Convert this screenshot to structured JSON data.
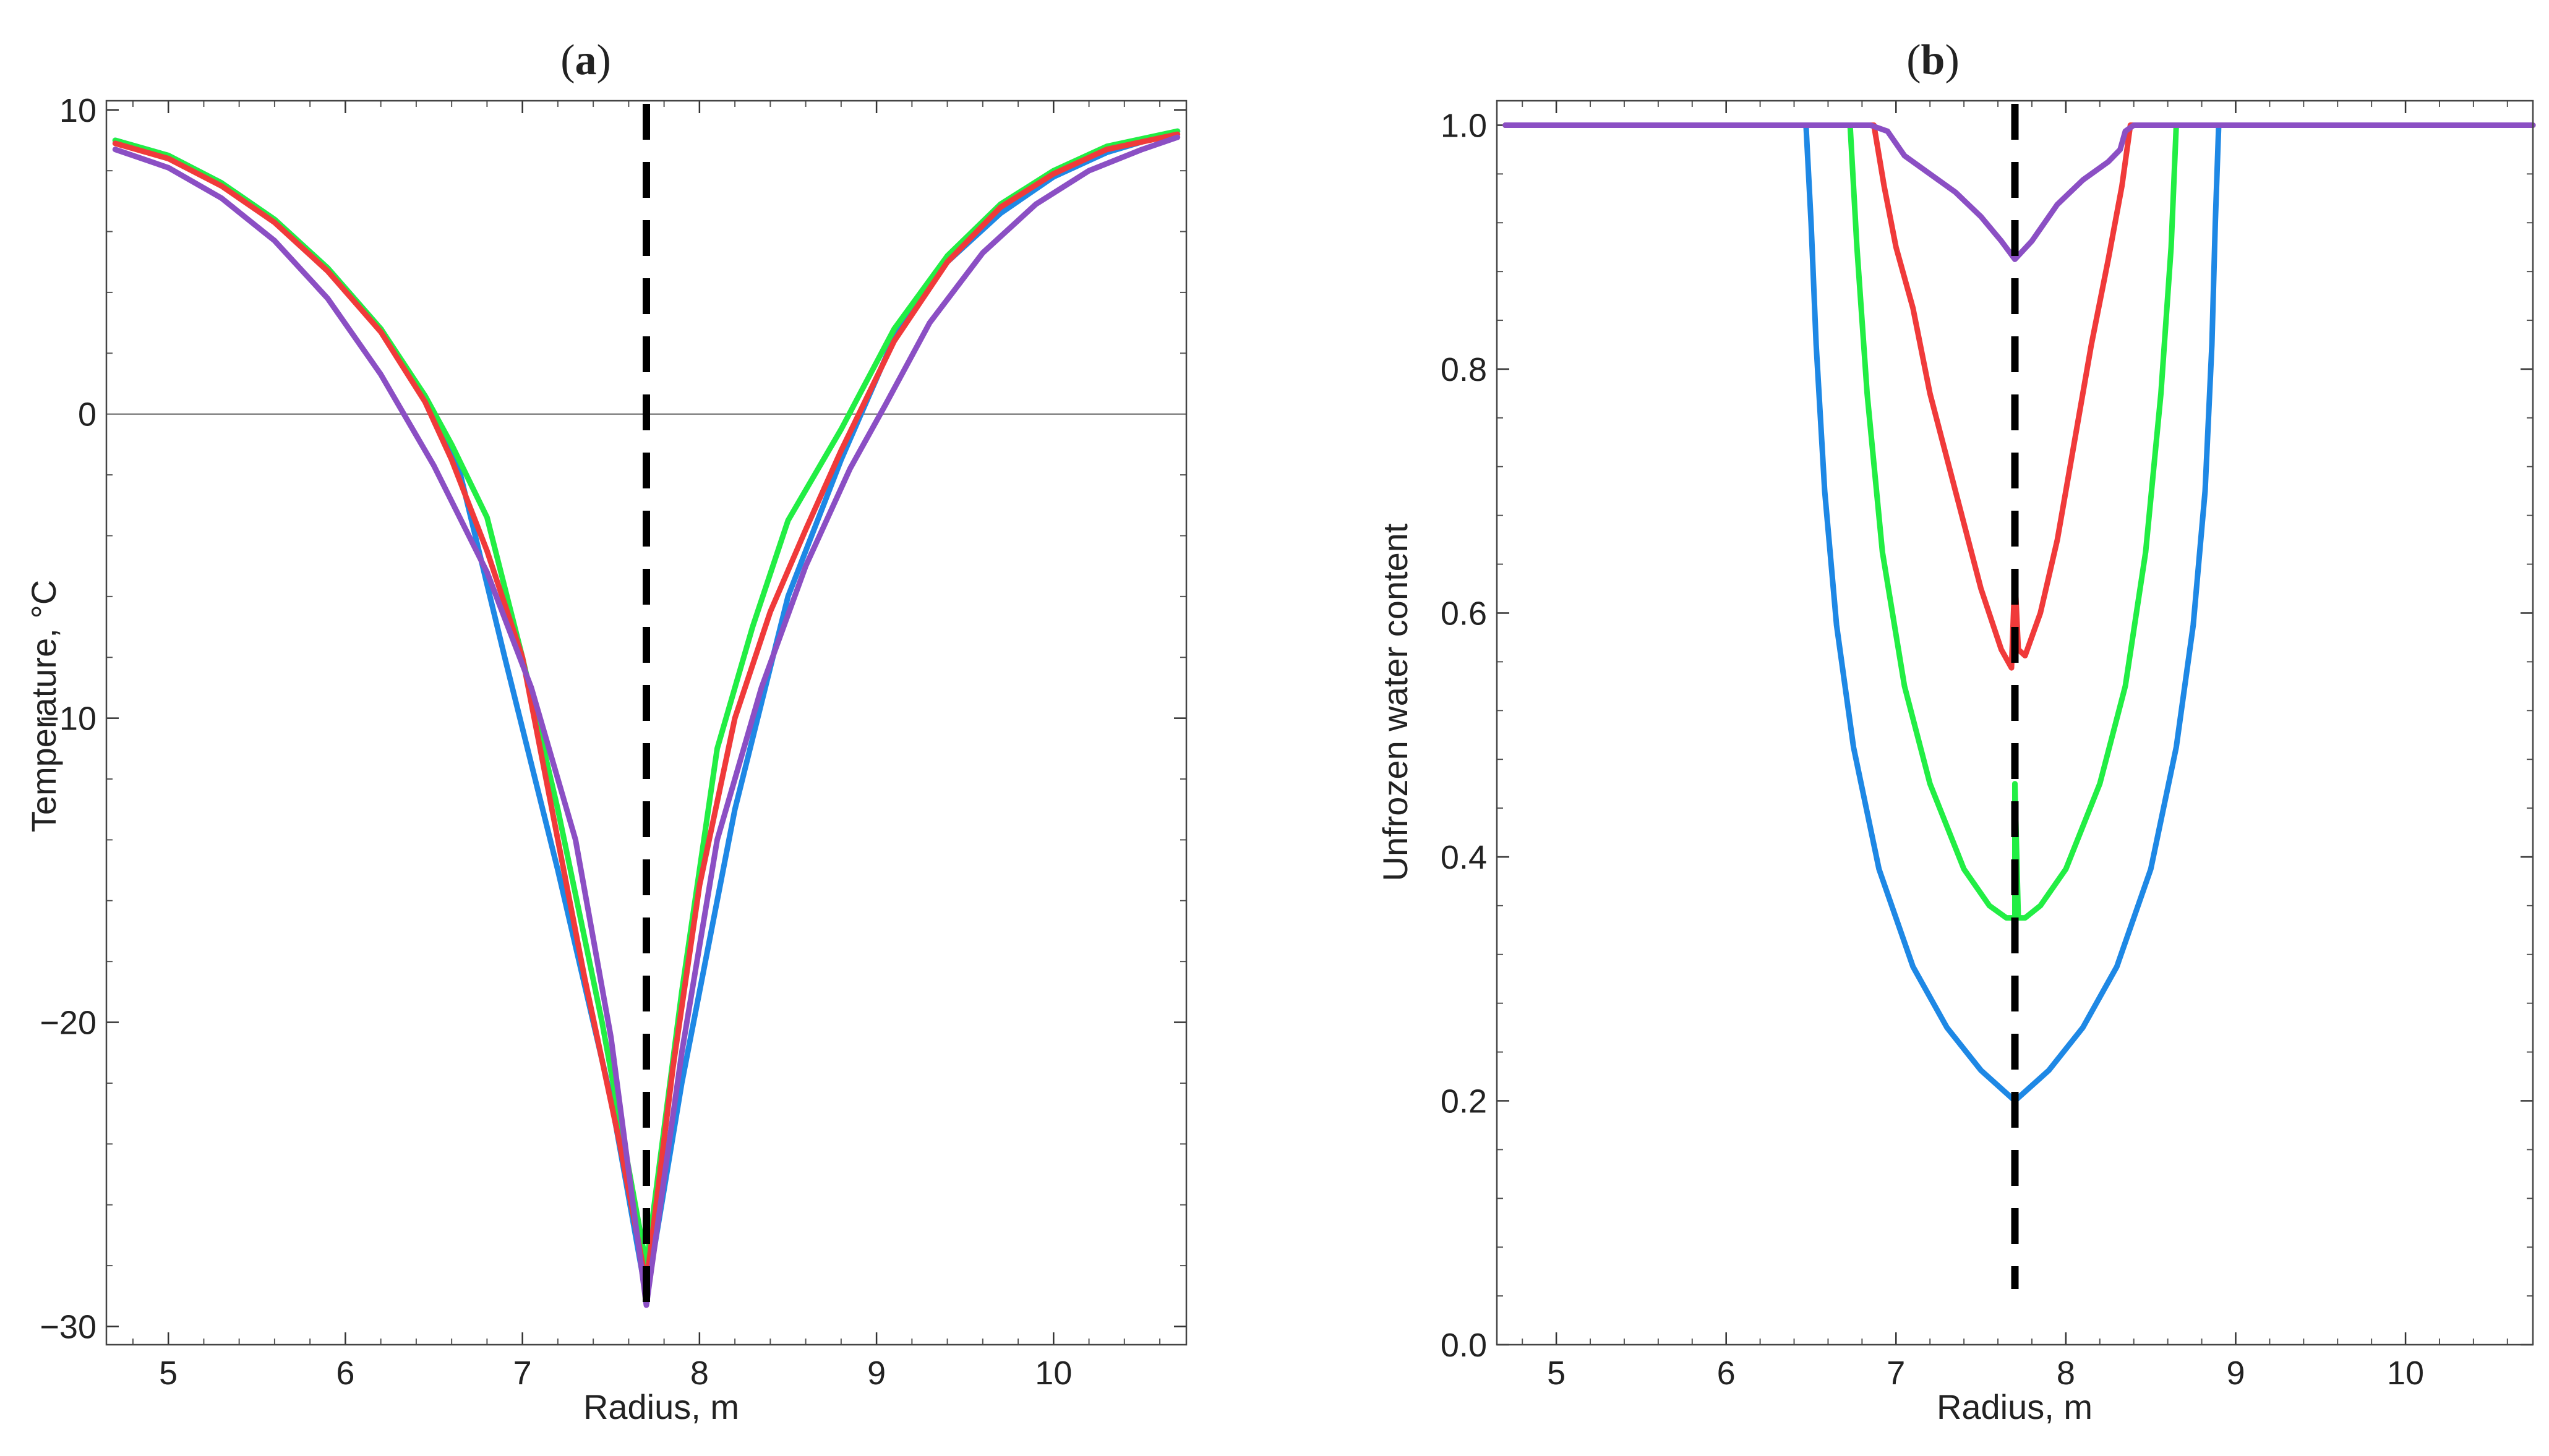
{
  "chart_data": [
    {
      "type": "line",
      "panel": "a",
      "title_prefix": "(",
      "title_letter": "a",
      "title_suffix": ")",
      "xlabel": "Radius, m",
      "ylabel": "Temperature, °C",
      "xlim": [
        4.65,
        10.75
      ],
      "ylim": [
        -30.6,
        10.3
      ],
      "xticks": [
        5,
        6,
        7,
        8,
        9,
        10
      ],
      "yticks": [
        -30,
        -20,
        -10,
        0,
        10
      ],
      "xtick_labels": [
        "5",
        "6",
        "7",
        "8",
        "9",
        "10"
      ],
      "ytick_labels": [
        "−30",
        "−20",
        "−10",
        "0",
        "10"
      ],
      "zero_line": 0,
      "vertical_marker_x": 7.7,
      "series": [
        {
          "name": "blue",
          "color": "#1e88e5",
          "points": [
            [
              4.7,
              9.0
            ],
            [
              5.0,
              8.5
            ],
            [
              5.3,
              7.6
            ],
            [
              5.6,
              6.4
            ],
            [
              5.9,
              4.8
            ],
            [
              6.2,
              2.8
            ],
            [
              6.45,
              0.5
            ],
            [
              6.65,
              -2.0
            ],
            [
              6.9,
              -8.0
            ],
            [
              7.2,
              -15.0
            ],
            [
              7.5,
              -22.5
            ],
            [
              7.7,
              -29.0
            ],
            [
              7.9,
              -22.0
            ],
            [
              8.2,
              -13.0
            ],
            [
              8.5,
              -6.0
            ],
            [
              8.8,
              -1.5
            ],
            [
              9.1,
              2.5
            ],
            [
              9.4,
              5.0
            ],
            [
              9.7,
              6.6
            ],
            [
              10.0,
              7.8
            ],
            [
              10.3,
              8.6
            ],
            [
              10.7,
              9.3
            ]
          ]
        },
        {
          "name": "green",
          "color": "#22ee44",
          "points": [
            [
              4.7,
              9.0
            ],
            [
              5.0,
              8.5
            ],
            [
              5.3,
              7.6
            ],
            [
              5.6,
              6.4
            ],
            [
              5.9,
              4.8
            ],
            [
              6.2,
              2.8
            ],
            [
              6.45,
              0.6
            ],
            [
              6.6,
              -1.0
            ],
            [
              6.8,
              -3.4
            ],
            [
              7.0,
              -8.0
            ],
            [
              7.2,
              -13.0
            ],
            [
              7.45,
              -20.0
            ],
            [
              7.7,
              -28.0
            ],
            [
              7.9,
              -19.0
            ],
            [
              8.1,
              -11.0
            ],
            [
              8.3,
              -7.0
            ],
            [
              8.5,
              -3.5
            ],
            [
              8.8,
              -0.5
            ],
            [
              9.1,
              2.8
            ],
            [
              9.4,
              5.2
            ],
            [
              9.7,
              6.9
            ],
            [
              10.0,
              8.0
            ],
            [
              10.3,
              8.8
            ],
            [
              10.7,
              9.3
            ]
          ]
        },
        {
          "name": "red",
          "color": "#f03a3a",
          "points": [
            [
              4.7,
              8.9
            ],
            [
              5.0,
              8.4
            ],
            [
              5.3,
              7.5
            ],
            [
              5.6,
              6.3
            ],
            [
              5.9,
              4.7
            ],
            [
              6.2,
              2.7
            ],
            [
              6.45,
              0.4
            ],
            [
              6.6,
              -1.5
            ],
            [
              6.8,
              -4.5
            ],
            [
              7.0,
              -8.0
            ],
            [
              7.15,
              -12.5
            ],
            [
              7.35,
              -18.5
            ],
            [
              7.55,
              -24.0
            ],
            [
              7.7,
              -28.6
            ],
            [
              7.85,
              -21.5
            ],
            [
              8.0,
              -15.5
            ],
            [
              8.2,
              -10.0
            ],
            [
              8.4,
              -6.5
            ],
            [
              8.6,
              -3.8
            ],
            [
              8.8,
              -1.2
            ],
            [
              9.1,
              2.4
            ],
            [
              9.4,
              5.0
            ],
            [
              9.7,
              6.8
            ],
            [
              10.0,
              7.9
            ],
            [
              10.3,
              8.7
            ],
            [
              10.7,
              9.2
            ]
          ]
        },
        {
          "name": "purple",
          "color": "#8b4fc4",
          "points": [
            [
              4.7,
              8.7
            ],
            [
              5.0,
              8.1
            ],
            [
              5.3,
              7.1
            ],
            [
              5.6,
              5.7
            ],
            [
              5.9,
              3.8
            ],
            [
              6.2,
              1.3
            ],
            [
              6.5,
              -1.7
            ],
            [
              6.8,
              -5.2
            ],
            [
              7.05,
              -9.0
            ],
            [
              7.3,
              -14.0
            ],
            [
              7.5,
              -20.5
            ],
            [
              7.7,
              -29.3
            ],
            [
              7.9,
              -21.0
            ],
            [
              8.1,
              -14.0
            ],
            [
              8.35,
              -9.0
            ],
            [
              8.6,
              -5.0
            ],
            [
              8.85,
              -1.8
            ],
            [
              9.05,
              0.3
            ],
            [
              9.3,
              3.0
            ],
            [
              9.6,
              5.3
            ],
            [
              9.9,
              6.9
            ],
            [
              10.2,
              8.0
            ],
            [
              10.5,
              8.7
            ],
            [
              10.7,
              9.1
            ]
          ]
        }
      ]
    },
    {
      "type": "line",
      "panel": "b",
      "title_prefix": "(",
      "title_letter": "b",
      "title_suffix": ")",
      "xlabel": "Radius, m",
      "ylabel": "Unfrozen water content",
      "xlim": [
        4.65,
        10.75
      ],
      "ylim": [
        0.0,
        1.02
      ],
      "xticks": [
        5,
        6,
        7,
        8,
        9,
        10
      ],
      "yticks": [
        0.0,
        0.2,
        0.4,
        0.6,
        0.8,
        1.0
      ],
      "xtick_labels": [
        "5",
        "6",
        "7",
        "8",
        "9",
        "10"
      ],
      "ytick_labels": [
        "0.0",
        "0.2",
        "0.4",
        "0.6",
        "0.8",
        "1.0"
      ],
      "vertical_marker_x": 7.7,
      "series": [
        {
          "name": "blue",
          "color": "#1e88e5",
          "points": [
            [
              4.7,
              1.0
            ],
            [
              6.47,
              1.0
            ],
            [
              6.5,
              0.92
            ],
            [
              6.53,
              0.82
            ],
            [
              6.58,
              0.7
            ],
            [
              6.65,
              0.59
            ],
            [
              6.75,
              0.49
            ],
            [
              6.9,
              0.39
            ],
            [
              7.1,
              0.31
            ],
            [
              7.3,
              0.26
            ],
            [
              7.5,
              0.225
            ],
            [
              7.7,
              0.2
            ],
            [
              7.9,
              0.225
            ],
            [
              8.1,
              0.26
            ],
            [
              8.3,
              0.31
            ],
            [
              8.5,
              0.39
            ],
            [
              8.65,
              0.49
            ],
            [
              8.75,
              0.59
            ],
            [
              8.82,
              0.7
            ],
            [
              8.86,
              0.82
            ],
            [
              8.88,
              0.92
            ],
            [
              8.9,
              1.0
            ],
            [
              10.75,
              1.0
            ]
          ]
        },
        {
          "name": "green",
          "color": "#22ee44",
          "points": [
            [
              4.7,
              1.0
            ],
            [
              6.73,
              1.0
            ],
            [
              6.77,
              0.9
            ],
            [
              6.83,
              0.78
            ],
            [
              6.92,
              0.65
            ],
            [
              7.05,
              0.54
            ],
            [
              7.2,
              0.46
            ],
            [
              7.4,
              0.39
            ],
            [
              7.55,
              0.36
            ],
            [
              7.65,
              0.35
            ],
            [
              7.7,
              0.35
            ],
            [
              7.7,
              0.46
            ],
            [
              7.72,
              0.35
            ],
            [
              7.76,
              0.35
            ],
            [
              7.85,
              0.36
            ],
            [
              8.0,
              0.39
            ],
            [
              8.2,
              0.46
            ],
            [
              8.35,
              0.54
            ],
            [
              8.47,
              0.65
            ],
            [
              8.56,
              0.78
            ],
            [
              8.62,
              0.9
            ],
            [
              8.65,
              1.0
            ],
            [
              10.75,
              1.0
            ]
          ]
        },
        {
          "name": "red",
          "color": "#f03a3a",
          "points": [
            [
              4.7,
              1.0
            ],
            [
              6.87,
              1.0
            ],
            [
              6.93,
              0.95
            ],
            [
              7.0,
              0.9
            ],
            [
              7.1,
              0.85
            ],
            [
              7.2,
              0.78
            ],
            [
              7.35,
              0.7
            ],
            [
              7.5,
              0.62
            ],
            [
              7.62,
              0.57
            ],
            [
              7.68,
              0.555
            ],
            [
              7.7,
              0.63
            ],
            [
              7.72,
              0.57
            ],
            [
              7.76,
              0.565
            ],
            [
              7.85,
              0.6
            ],
            [
              7.95,
              0.66
            ],
            [
              8.05,
              0.74
            ],
            [
              8.15,
              0.82
            ],
            [
              8.25,
              0.89
            ],
            [
              8.33,
              0.95
            ],
            [
              8.38,
              1.0
            ],
            [
              10.75,
              1.0
            ]
          ]
        },
        {
          "name": "purple",
          "color": "#8b4fc4",
          "points": [
            [
              4.7,
              1.0
            ],
            [
              6.85,
              1.0
            ],
            [
              6.95,
              0.995
            ],
            [
              7.05,
              0.975
            ],
            [
              7.2,
              0.96
            ],
            [
              7.35,
              0.945
            ],
            [
              7.5,
              0.925
            ],
            [
              7.62,
              0.905
            ],
            [
              7.7,
              0.89
            ],
            [
              7.8,
              0.905
            ],
            [
              7.95,
              0.935
            ],
            [
              8.1,
              0.955
            ],
            [
              8.25,
              0.97
            ],
            [
              8.32,
              0.98
            ],
            [
              8.35,
              0.995
            ],
            [
              8.4,
              1.0
            ],
            [
              10.75,
              1.0
            ]
          ]
        }
      ]
    }
  ]
}
